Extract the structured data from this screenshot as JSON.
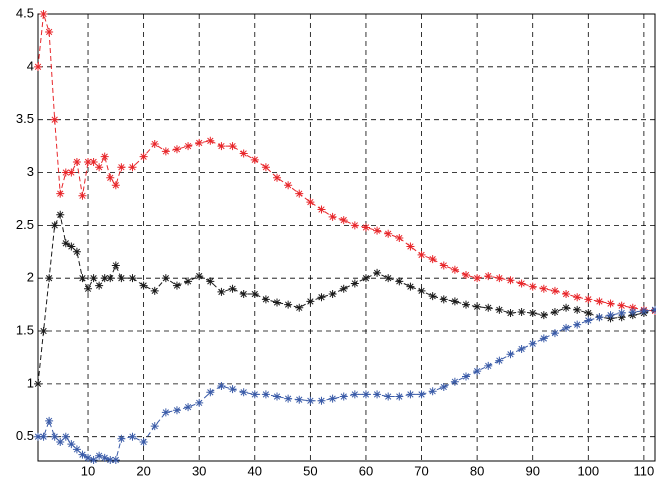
{
  "chart_data": {
    "type": "line",
    "x": [
      1,
      2,
      3,
      4,
      5,
      6,
      7,
      8,
      9,
      10,
      11,
      12,
      13,
      14,
      15,
      16,
      18,
      20,
      22,
      24,
      26,
      28,
      30,
      32,
      34,
      36,
      38,
      40,
      42,
      44,
      46,
      48,
      50,
      52,
      54,
      56,
      58,
      60,
      62,
      64,
      66,
      68,
      70,
      72,
      74,
      76,
      78,
      80,
      82,
      84,
      86,
      88,
      90,
      92,
      94,
      96,
      98,
      100,
      102,
      104,
      106,
      108,
      110,
      112
    ],
    "series": [
      {
        "color": "#e8262a",
        "values": [
          4.0,
          4.5,
          4.33,
          3.5,
          2.8,
          3.0,
          3.0,
          3.1,
          2.78,
          3.1,
          3.1,
          3.05,
          3.15,
          2.95,
          2.88,
          3.05,
          3.05,
          3.15,
          3.27,
          3.2,
          3.22,
          3.25,
          3.28,
          3.3,
          3.25,
          3.25,
          3.18,
          3.12,
          3.05,
          2.95,
          2.88,
          2.8,
          2.72,
          2.65,
          2.58,
          2.55,
          2.5,
          2.48,
          2.45,
          2.42,
          2.38,
          2.3,
          2.22,
          2.18,
          2.12,
          2.08,
          2.03,
          2.0,
          2.02,
          2.0,
          1.98,
          1.95,
          1.92,
          1.9,
          1.88,
          1.85,
          1.82,
          1.8,
          1.78,
          1.76,
          1.74,
          1.72,
          1.7,
          1.69
        ]
      },
      {
        "color": "#1a1a1a",
        "values": [
          1.0,
          1.5,
          2.0,
          2.5,
          2.6,
          2.33,
          2.3,
          2.25,
          2.0,
          1.9,
          2.0,
          1.93,
          2.0,
          2.0,
          2.12,
          2.0,
          2.0,
          1.93,
          1.88,
          2.0,
          1.93,
          1.97,
          2.02,
          1.97,
          1.87,
          1.9,
          1.85,
          1.85,
          1.8,
          1.77,
          1.75,
          1.72,
          1.78,
          1.82,
          1.85,
          1.9,
          1.95,
          2.0,
          2.05,
          2.0,
          1.97,
          1.92,
          1.88,
          1.83,
          1.8,
          1.78,
          1.75,
          1.73,
          1.72,
          1.7,
          1.67,
          1.68,
          1.67,
          1.65,
          1.68,
          1.72,
          1.7,
          1.67,
          1.63,
          1.62,
          1.63,
          1.65,
          1.67,
          1.7
        ]
      },
      {
        "color": "#3a5ba8",
        "values": [
          0.5,
          0.5,
          0.65,
          0.5,
          0.45,
          0.5,
          0.43,
          0.38,
          0.33,
          0.3,
          0.28,
          0.32,
          0.3,
          0.28,
          0.28,
          0.48,
          0.5,
          0.45,
          0.6,
          0.73,
          0.75,
          0.78,
          0.82,
          0.92,
          0.98,
          0.95,
          0.92,
          0.9,
          0.9,
          0.88,
          0.86,
          0.85,
          0.84,
          0.84,
          0.86,
          0.88,
          0.9,
          0.9,
          0.9,
          0.88,
          0.88,
          0.9,
          0.9,
          0.93,
          0.97,
          1.02,
          1.07,
          1.12,
          1.17,
          1.22,
          1.28,
          1.33,
          1.38,
          1.43,
          1.48,
          1.53,
          1.56,
          1.6,
          1.63,
          1.65,
          1.67,
          1.68,
          1.69,
          1.7
        ]
      }
    ],
    "xlim": [
      1,
      112
    ],
    "ylim": [
      0.27,
      4.5
    ],
    "xticks": [
      10,
      20,
      30,
      40,
      50,
      60,
      70,
      80,
      90,
      100,
      110
    ],
    "yticks": [
      0.5,
      1,
      1.5,
      2,
      2.5,
      3,
      3.5,
      4,
      4.5
    ],
    "grid": true
  }
}
